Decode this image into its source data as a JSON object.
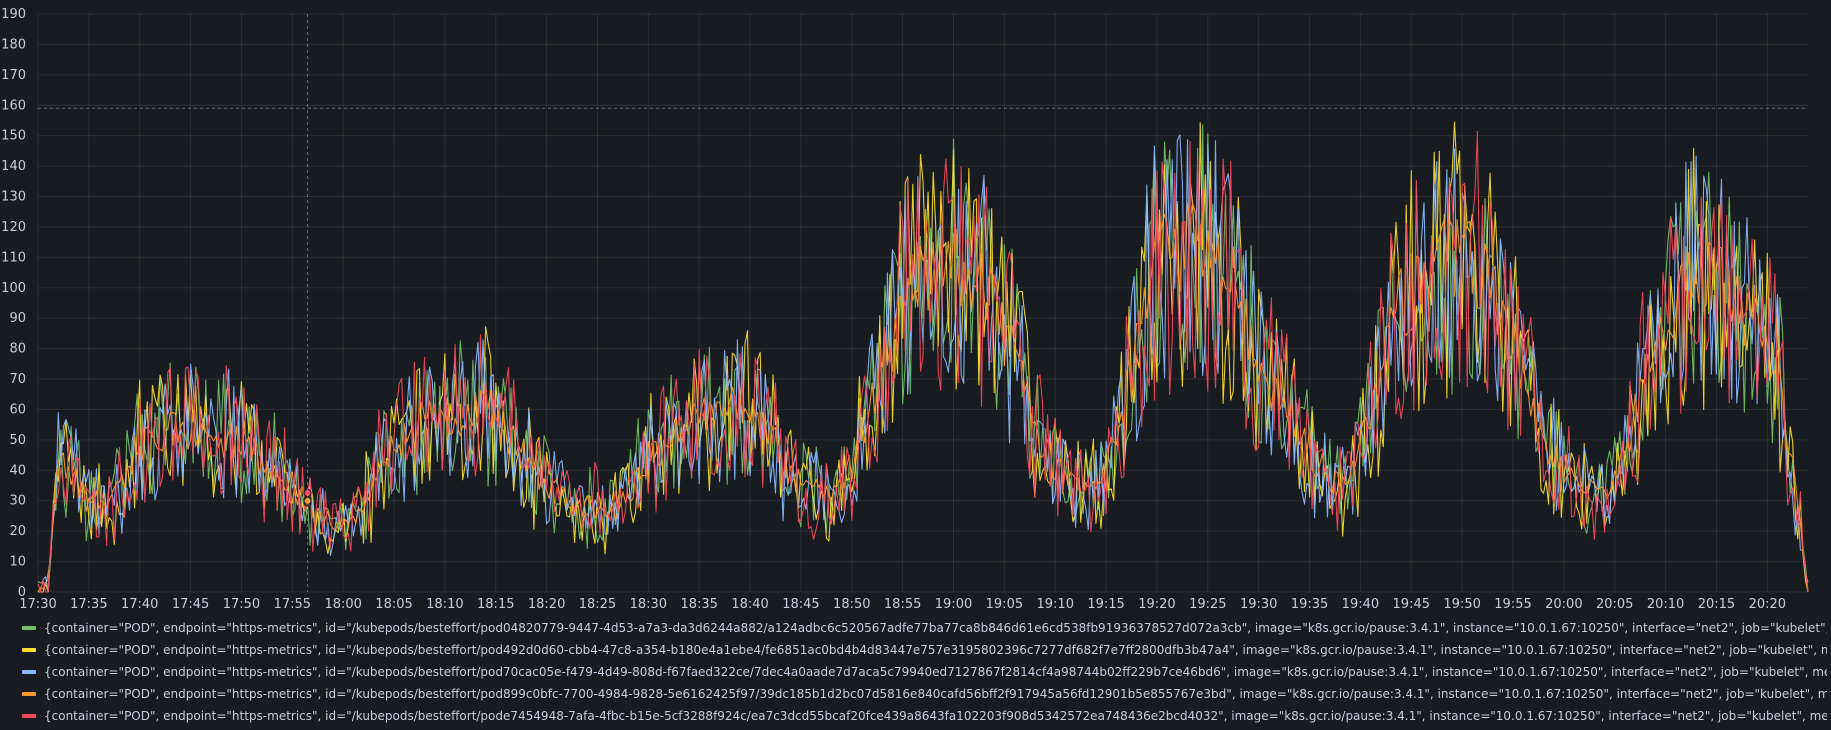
{
  "chart_data": {
    "type": "line",
    "yticks": [
      0,
      10,
      20,
      30,
      40,
      50,
      60,
      70,
      80,
      90,
      100,
      110,
      120,
      130,
      140,
      150,
      160,
      170,
      180,
      190
    ],
    "ylim": [
      0,
      190
    ],
    "x_start": "17:30",
    "x_end": "20:24",
    "xticks": [
      "17:30",
      "17:35",
      "17:40",
      "17:45",
      "17:50",
      "17:55",
      "18:00",
      "18:05",
      "18:10",
      "18:15",
      "18:20",
      "18:25",
      "18:30",
      "18:35",
      "18:40",
      "18:45",
      "18:50",
      "18:55",
      "19:00",
      "19:05",
      "19:10",
      "19:15",
      "19:20",
      "19:25",
      "19:30",
      "19:35",
      "19:40",
      "19:45",
      "19:50",
      "19:55",
      "20:00",
      "20:05",
      "20:10",
      "20:15",
      "20:20"
    ],
    "grid": true,
    "threshold_line": 159,
    "cursor_time": "17:56",
    "legend_position": "bottom",
    "trend": [
      [
        "17:30",
        0
      ],
      [
        "17:31",
        3
      ],
      [
        "17:32",
        45
      ],
      [
        "17:35",
        30
      ],
      [
        "17:37",
        28
      ],
      [
        "17:40",
        48
      ],
      [
        "17:43",
        55
      ],
      [
        "17:46",
        52
      ],
      [
        "17:50",
        50
      ],
      [
        "17:53",
        42
      ],
      [
        "17:56",
        30
      ],
      [
        "17:59",
        22
      ],
      [
        "18:02",
        28
      ],
      [
        "18:04",
        45
      ],
      [
        "18:07",
        55
      ],
      [
        "18:11",
        58
      ],
      [
        "18:14",
        62
      ],
      [
        "18:17",
        50
      ],
      [
        "18:20",
        35
      ],
      [
        "18:23",
        28
      ],
      [
        "18:27",
        27
      ],
      [
        "18:30",
        45
      ],
      [
        "18:34",
        55
      ],
      [
        "18:38",
        62
      ],
      [
        "18:41",
        58
      ],
      [
        "18:44",
        38
      ],
      [
        "18:48",
        30
      ],
      [
        "18:50",
        40
      ],
      [
        "18:53",
        75
      ],
      [
        "18:56",
        100
      ],
      [
        "19:00",
        108
      ],
      [
        "19:03",
        100
      ],
      [
        "19:06",
        78
      ],
      [
        "19:09",
        45
      ],
      [
        "19:12",
        35
      ],
      [
        "19:15",
        38
      ],
      [
        "19:17",
        65
      ],
      [
        "19:20",
        110
      ],
      [
        "19:24",
        115
      ],
      [
        "19:27",
        105
      ],
      [
        "19:30",
        75
      ],
      [
        "19:33",
        60
      ],
      [
        "19:36",
        40
      ],
      [
        "19:39",
        35
      ],
      [
        "19:41",
        60
      ],
      [
        "19:44",
        95
      ],
      [
        "19:48",
        108
      ],
      [
        "19:51",
        110
      ],
      [
        "19:55",
        82
      ],
      [
        "19:58",
        50
      ],
      [
        "20:01",
        35
      ],
      [
        "20:04",
        32
      ],
      [
        "20:06",
        45
      ],
      [
        "20:09",
        85
      ],
      [
        "20:13",
        105
      ],
      [
        "20:16",
        100
      ],
      [
        "20:19",
        85
      ],
      [
        "20:21",
        75
      ],
      [
        "20:22",
        50
      ],
      [
        "20:23",
        30
      ],
      [
        "20:24",
        0
      ]
    ],
    "series": [
      {
        "label": "{container=\"POD\", endpoint=\"https-metrics\", id=\"/kubepods/besteffort/pod04820779-9447-4d53-a7a3-da3d6244a882/a124adbc6c520567adfe77ba77ca8b846d61e6cd538fb91936378527d072a3cb\", image=\"k8s.gcr.io/pause:3.4.1\", instance=\"10.0.1.67:10250\", interface=\"net2\", job=\"kubelet\", metrics_path=\"/metrics/cadvisor\", n",
        "color": "#73bf69",
        "seed": 11,
        "amp": 1.0
      },
      {
        "label": "{container=\"POD\", endpoint=\"https-metrics\", id=\"/kubepods/besteffort/pod492d0d60-cbb4-47c8-a354-b180e4a1ebe4/fe6851ac0bd4b4d83447e757e3195802396c7277df682f7e7ff2800dfb3b47a4\", image=\"k8s.gcr.io/pause:3.4.1\", instance=\"10.0.1.67:10250\", interface=\"net2\", job=\"kubelet\", metrics_path=\"/metrics/cadvisor\", n",
        "color": "#fade2a",
        "seed": 23,
        "amp": 1.1
      },
      {
        "label": "{container=\"POD\", endpoint=\"https-metrics\", id=\"/kubepods/besteffort/pod70cac05e-f479-4d49-808d-f67faed322ce/7dec4a0aade7d7aca5c79940ed7127867f2814cf4a98744b02ff229b7ce46bd6\", image=\"k8s.gcr.io/pause:3.4.1\", instance=\"10.0.1.67:10250\", interface=\"net2\", job=\"kubelet\", metrics_path=\"/metrics/cadvisor\", na",
        "color": "#8ab8ff",
        "seed": 37,
        "amp": 1.0
      },
      {
        "label": "{container=\"POD\", endpoint=\"https-metrics\", id=\"/kubepods/besteffort/pod899c0bfc-7700-4984-9828-5e6162425f97/39dc185b1d2bc07d5816e840cafd56bff2f917945a56fd12901b5e855767e3bd\", image=\"k8s.gcr.io/pause:3.4.1\", instance=\"10.0.1.67:10250\", interface=\"net2\", job=\"kubelet\", metrics_path=\"/metrics/cadvisor\", n",
        "color": "#ff9830",
        "seed": 41,
        "amp": 0.35
      },
      {
        "label": "{container=\"POD\", endpoint=\"https-metrics\", id=\"/kubepods/besteffort/pode7454948-7afa-4fbc-b15e-5cf3288f924c/ea7c3dcd55bcaf20fce439a8643fa102203f908d5342572ea748436e2bcd4032\", image=\"k8s.gcr.io/pause:3.4.1\", instance=\"10.0.1.67:10250\", interface=\"net2\", job=\"kubelet\", metrics_path=\"/metrics/cadvisor\", na",
        "color": "#f2495c",
        "seed": 53,
        "amp": 1.05
      }
    ]
  }
}
